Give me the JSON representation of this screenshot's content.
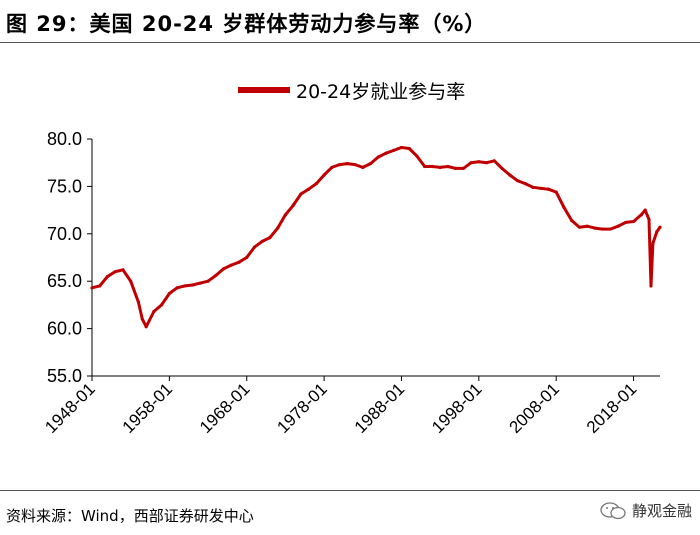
{
  "figure": {
    "title": "图 29：美国 20-24 岁群体劳动力参与率（%）",
    "source": "资料来源：Wind，西部证券研发中心",
    "brand": "静观金融",
    "brand_icon": "wechat-icon"
  },
  "chart_data": {
    "type": "line",
    "title": "",
    "xlabel": "",
    "ylabel": "",
    "ylim": [
      55,
      80
    ],
    "yticks": [
      "55.0",
      "60.0",
      "65.0",
      "70.0",
      "75.0",
      "80.0"
    ],
    "xlim": [
      "1948-01",
      "2021-06"
    ],
    "xticks": [
      "1948-01",
      "1958-01",
      "1968-01",
      "1978-01",
      "1988-01",
      "1998-01",
      "2008-01",
      "2018-01"
    ],
    "legend_position": "top-center",
    "grid": false,
    "color": "#c00000",
    "series": [
      {
        "name": "20-24岁就业参与率",
        "points": [
          [
            "1948-01",
            64.3
          ],
          [
            "1949-01",
            64.5
          ],
          [
            "1950-01",
            65.5
          ],
          [
            "1951-01",
            66.0
          ],
          [
            "1952-01",
            66.2
          ],
          [
            "1953-01",
            65.0
          ],
          [
            "1954-01",
            62.8
          ],
          [
            "1954-07",
            61.0
          ],
          [
            "1955-01",
            60.2
          ],
          [
            "1956-01",
            61.8
          ],
          [
            "1957-01",
            62.5
          ],
          [
            "1958-01",
            63.7
          ],
          [
            "1959-01",
            64.3
          ],
          [
            "1960-01",
            64.5
          ],
          [
            "1961-01",
            64.6
          ],
          [
            "1962-01",
            64.8
          ],
          [
            "1963-01",
            65.0
          ],
          [
            "1964-01",
            65.6
          ],
          [
            "1965-01",
            66.3
          ],
          [
            "1966-01",
            66.7
          ],
          [
            "1967-01",
            67.0
          ],
          [
            "1968-01",
            67.5
          ],
          [
            "1969-01",
            68.6
          ],
          [
            "1970-01",
            69.2
          ],
          [
            "1971-01",
            69.6
          ],
          [
            "1972-01",
            70.6
          ],
          [
            "1973-01",
            72.0
          ],
          [
            "1974-01",
            73.0
          ],
          [
            "1975-01",
            74.2
          ],
          [
            "1976-01",
            74.7
          ],
          [
            "1977-01",
            75.3
          ],
          [
            "1978-01",
            76.2
          ],
          [
            "1979-01",
            77.0
          ],
          [
            "1980-01",
            77.3
          ],
          [
            "1981-01",
            77.4
          ],
          [
            "1982-01",
            77.3
          ],
          [
            "1983-01",
            77.0
          ],
          [
            "1984-01",
            77.4
          ],
          [
            "1985-01",
            78.1
          ],
          [
            "1986-01",
            78.5
          ],
          [
            "1987-01",
            78.8
          ],
          [
            "1988-01",
            79.1
          ],
          [
            "1989-01",
            79.0
          ],
          [
            "1990-01",
            78.2
          ],
          [
            "1991-01",
            77.1
          ],
          [
            "1992-01",
            77.1
          ],
          [
            "1993-01",
            77.0
          ],
          [
            "1994-01",
            77.1
          ],
          [
            "1995-01",
            76.9
          ],
          [
            "1996-01",
            76.9
          ],
          [
            "1997-01",
            77.5
          ],
          [
            "1998-01",
            77.6
          ],
          [
            "1999-01",
            77.5
          ],
          [
            "2000-01",
            77.7
          ],
          [
            "2001-01",
            76.9
          ],
          [
            "2002-01",
            76.2
          ],
          [
            "2003-01",
            75.6
          ],
          [
            "2004-01",
            75.3
          ],
          [
            "2005-01",
            74.9
          ],
          [
            "2006-01",
            74.8
          ],
          [
            "2007-01",
            74.7
          ],
          [
            "2008-01",
            74.4
          ],
          [
            "2009-01",
            72.8
          ],
          [
            "2010-01",
            71.4
          ],
          [
            "2011-01",
            70.7
          ],
          [
            "2012-01",
            70.8
          ],
          [
            "2013-01",
            70.6
          ],
          [
            "2014-01",
            70.5
          ],
          [
            "2015-01",
            70.5
          ],
          [
            "2016-01",
            70.8
          ],
          [
            "2017-01",
            71.2
          ],
          [
            "2018-01",
            71.3
          ],
          [
            "2019-01",
            72.0
          ],
          [
            "2019-07",
            72.5
          ],
          [
            "2020-01",
            71.5
          ],
          [
            "2020-04",
            64.5
          ],
          [
            "2020-07",
            69.0
          ],
          [
            "2021-01",
            70.2
          ],
          [
            "2021-06",
            70.7
          ]
        ]
      }
    ]
  }
}
